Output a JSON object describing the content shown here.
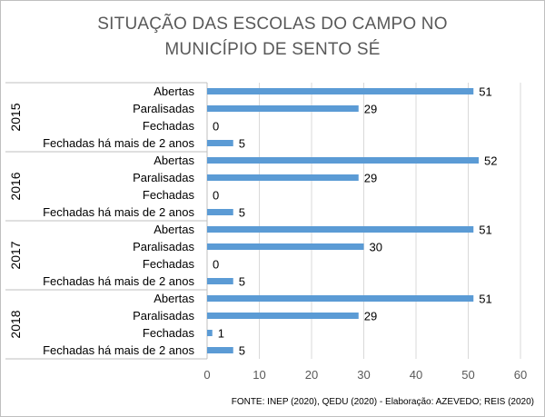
{
  "chart_data": {
    "type": "bar",
    "orientation": "horizontal",
    "title_lines": [
      "SITUAÇÃO DAS ESCOLAS DO CAMPO NO",
      "MUNICÍPIO DE SENTO SÉ"
    ],
    "groups": [
      {
        "year": "2015",
        "items": [
          {
            "label": "Abertas",
            "value": 51
          },
          {
            "label": "Paralisadas",
            "value": 29
          },
          {
            "label": "Fechadas",
            "value": 0
          },
          {
            "label": "Fechadas há mais de 2 anos",
            "value": 5
          }
        ]
      },
      {
        "year": "2016",
        "items": [
          {
            "label": "Abertas",
            "value": 52
          },
          {
            "label": "Paralisadas",
            "value": 29
          },
          {
            "label": "Fechadas",
            "value": 0
          },
          {
            "label": "Fechadas há mais de 2 anos",
            "value": 5
          }
        ]
      },
      {
        "year": "2017",
        "items": [
          {
            "label": "Abertas",
            "value": 51
          },
          {
            "label": "Paralisadas",
            "value": 30
          },
          {
            "label": "Fechadas",
            "value": 0
          },
          {
            "label": "Fechadas há mais de 2 anos",
            "value": 5
          }
        ]
      },
      {
        "year": "2018",
        "items": [
          {
            "label": "Abertas",
            "value": 51
          },
          {
            "label": "Paralisadas",
            "value": 29
          },
          {
            "label": "Fechadas",
            "value": 1
          },
          {
            "label": "Fechadas há mais de 2 anos",
            "value": 5
          }
        ]
      }
    ],
    "xlim": [
      0,
      60
    ],
    "xticks": [
      0,
      10,
      20,
      30,
      40,
      50,
      60
    ],
    "grid": "vertical",
    "bar_color": "#5b9bd5",
    "data_labels": true,
    "source": "FONTE: INEP (2020),  QEDU (2020)  - Elaboração: AZEVEDO; REIS (2020)"
  }
}
